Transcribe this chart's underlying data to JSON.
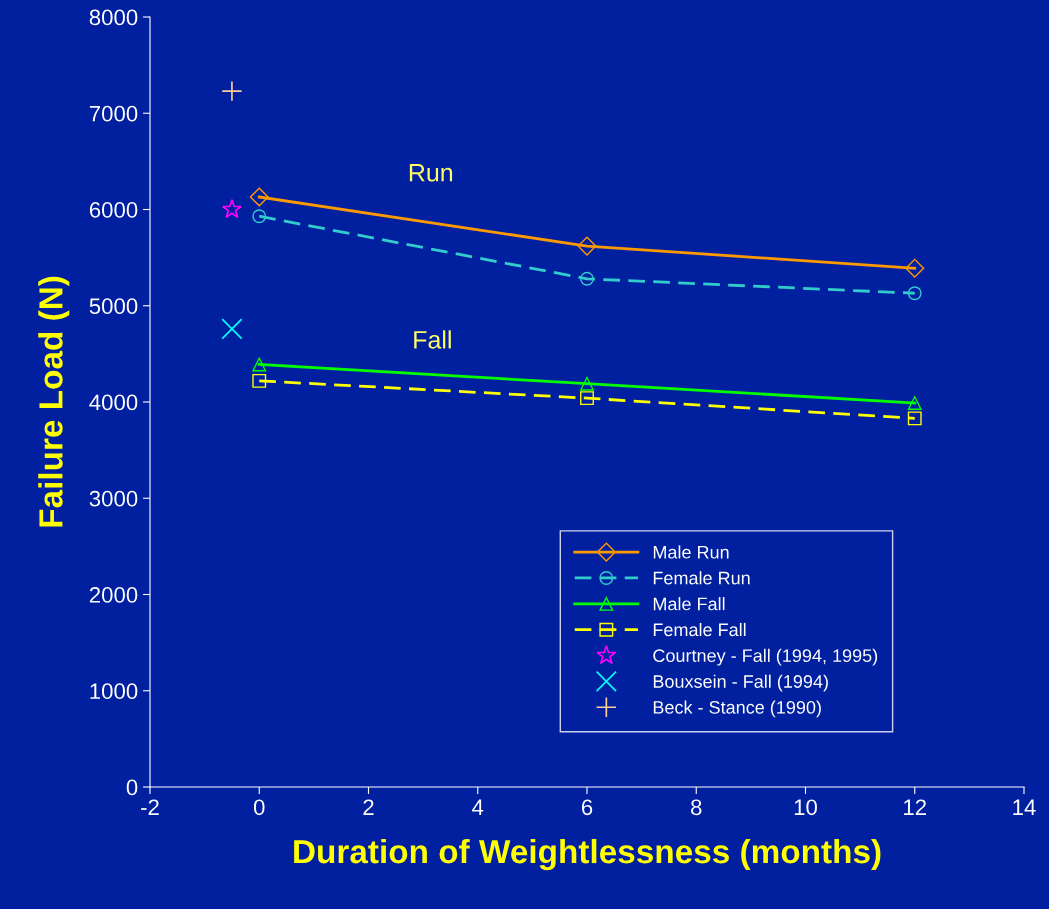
{
  "chart_data": {
    "type": "line",
    "xlabel": "Duration of Weightlessness (months)",
    "ylabel": "Failure Load (N)",
    "xlim": [
      -2,
      14
    ],
    "xticks": [
      -2,
      0,
      2,
      4,
      6,
      8,
      10,
      12,
      14
    ],
    "ylim": [
      0,
      8000
    ],
    "yticks": [
      0,
      1000,
      2000,
      3000,
      4000,
      5000,
      6000,
      7000,
      8000
    ],
    "grid": false,
    "legend": "bottom right",
    "series": [
      {
        "name": "Male Run",
        "color": "#ff9900",
        "x": [
          0,
          6,
          12
        ],
        "values": [
          6130,
          5620,
          5390
        ],
        "marker": "diamond",
        "line_style": "solid"
      },
      {
        "name": "Female Run",
        "color": "#33cccc",
        "x": [
          0,
          6,
          12
        ],
        "values": [
          5930,
          5280,
          5130
        ],
        "marker": "circle",
        "line_style": "dashed"
      },
      {
        "name": "Male Fall",
        "color": "#00ff00",
        "x": [
          0,
          6,
          12
        ],
        "values": [
          4390,
          4190,
          3990
        ],
        "marker": "triangle",
        "line_style": "solid"
      },
      {
        "name": "Female Fall",
        "color": "#ffff00",
        "x": [
          0,
          6,
          12
        ],
        "values": [
          4220,
          4040,
          3830
        ],
        "marker": "square",
        "line_style": "dashed"
      },
      {
        "name": "Courtney - Fall (1994, 1995)",
        "type": "scatter",
        "color": "#ff00ff",
        "x": [
          -0.5
        ],
        "values": [
          6000
        ],
        "marker": "star"
      },
      {
        "name": "Bouxsein - Fall (1994)",
        "type": "scatter",
        "color": "#00ffff",
        "x": [
          -0.5
        ],
        "values": [
          4760
        ],
        "marker": "cross"
      },
      {
        "name": "Beck - Stance (1990)",
        "type": "scatter",
        "color": "#ffcc99",
        "x": [
          -0.5
        ],
        "values": [
          7230
        ],
        "marker": "plus"
      }
    ],
    "annotations": [
      "Run",
      "Fall"
    ]
  }
}
